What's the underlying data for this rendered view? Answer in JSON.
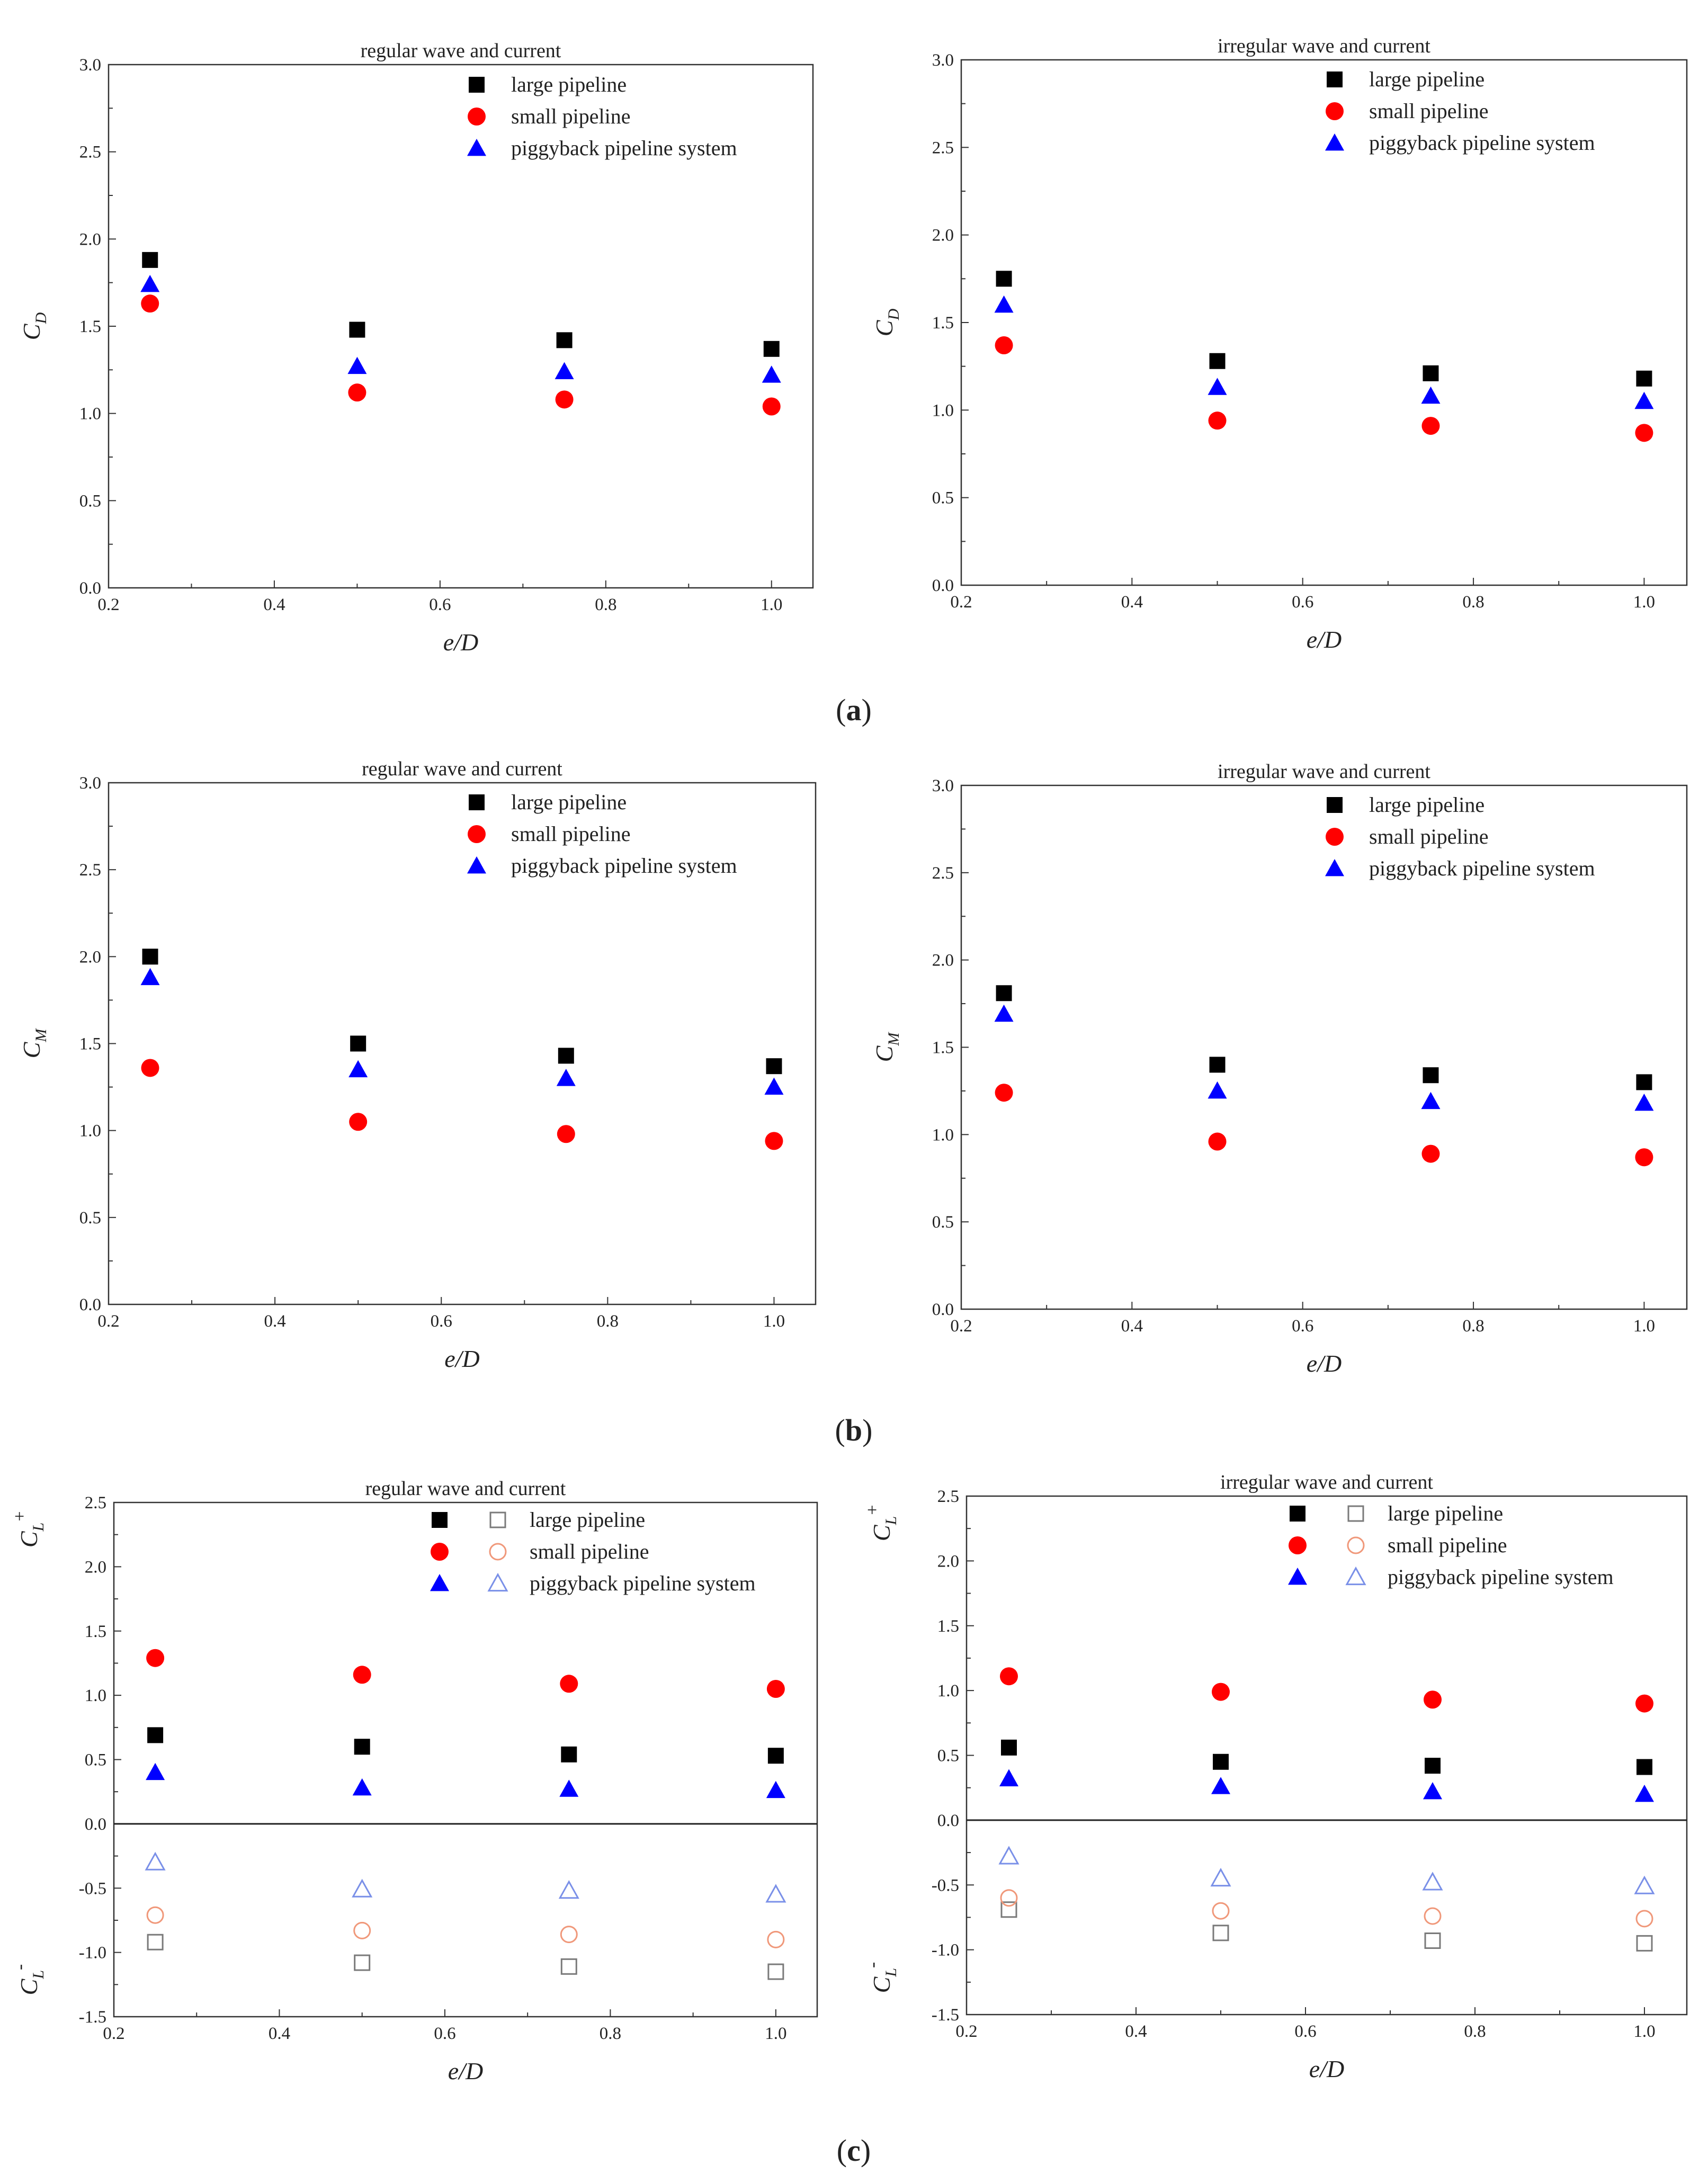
{
  "panel_labels": [
    "a",
    "b",
    "c"
  ],
  "chart_data": [
    {
      "type": "scatter",
      "panel": "a",
      "title": "regular wave and current",
      "xlabel": "e/D",
      "ylabel": "C",
      "ylabel_sub": "D",
      "xlim": [
        0.2,
        1.05
      ],
      "ylim": [
        0.0,
        3.0
      ],
      "xticks": [
        "0.2",
        "0.4",
        "0.6",
        "0.8",
        "1.0"
      ],
      "yticks": [
        "0.0",
        "0.5",
        "1.0",
        "1.5",
        "2.0",
        "2.5",
        "3.0"
      ],
      "x": [
        0.25,
        0.5,
        0.75,
        1.0
      ],
      "series": [
        {
          "name": "large pipeline",
          "marker": "square",
          "color": "#000000",
          "values": [
            1.88,
            1.48,
            1.42,
            1.37
          ]
        },
        {
          "name": "small pipeline",
          "marker": "circle",
          "color": "#ff0000",
          "values": [
            1.63,
            1.12,
            1.08,
            1.04
          ]
        },
        {
          "name": "piggyback pipeline system",
          "marker": "triangle",
          "color": "#0000ff",
          "values": [
            1.74,
            1.27,
            1.24,
            1.22
          ]
        }
      ]
    },
    {
      "type": "scatter",
      "panel": "a",
      "title": "irregular wave and current",
      "xlabel": "e/D",
      "ylabel": "C",
      "ylabel_sub": "D",
      "xlim": [
        0.2,
        1.05
      ],
      "ylim": [
        0.0,
        3.0
      ],
      "xticks": [
        "0.2",
        "0.4",
        "0.6",
        "0.8",
        "1.0"
      ],
      "yticks": [
        "0.0",
        "0.5",
        "1.0",
        "1.5",
        "2.0",
        "2.5",
        "3.0"
      ],
      "x": [
        0.25,
        0.5,
        0.75,
        1.0
      ],
      "series": [
        {
          "name": "large pipeline",
          "marker": "square",
          "color": "#000000",
          "values": [
            1.75,
            1.28,
            1.21,
            1.18
          ]
        },
        {
          "name": "small pipeline",
          "marker": "circle",
          "color": "#ff0000",
          "values": [
            1.37,
            0.94,
            0.91,
            0.87
          ]
        },
        {
          "name": "piggyback pipeline system",
          "marker": "triangle",
          "color": "#0000ff",
          "values": [
            1.6,
            1.13,
            1.08,
            1.05
          ]
        }
      ]
    },
    {
      "type": "scatter",
      "panel": "b",
      "title": "regular wave and current",
      "xlabel": "e/D",
      "ylabel": "C",
      "ylabel_sub": "M",
      "xlim": [
        0.2,
        1.05
      ],
      "ylim": [
        0.0,
        3.0
      ],
      "xticks": [
        "0.2",
        "0.4",
        "0.6",
        "0.8",
        "1.0"
      ],
      "yticks": [
        "0.0",
        "0.5",
        "1.0",
        "1.5",
        "2.0",
        "2.5",
        "3.0"
      ],
      "x": [
        0.25,
        0.5,
        0.75,
        1.0
      ],
      "series": [
        {
          "name": "large pipeline",
          "marker": "square",
          "color": "#000000",
          "values": [
            2.0,
            1.5,
            1.43,
            1.37
          ]
        },
        {
          "name": "small pipeline",
          "marker": "circle",
          "color": "#ff0000",
          "values": [
            1.36,
            1.05,
            0.98,
            0.94
          ]
        },
        {
          "name": "piggyback pipeline system",
          "marker": "triangle",
          "color": "#0000ff",
          "values": [
            1.88,
            1.35,
            1.3,
            1.25
          ]
        }
      ]
    },
    {
      "type": "scatter",
      "panel": "b",
      "title": "irregular wave and current",
      "xlabel": "e/D",
      "ylabel": "C",
      "ylabel_sub": "M",
      "xlim": [
        0.2,
        1.05
      ],
      "ylim": [
        0.0,
        3.0
      ],
      "xticks": [
        "0.2",
        "0.4",
        "0.6",
        "0.8",
        "1.0"
      ],
      "yticks": [
        "0.0",
        "0.5",
        "1.0",
        "1.5",
        "2.0",
        "2.5",
        "3.0"
      ],
      "x": [
        0.25,
        0.5,
        0.75,
        1.0
      ],
      "series": [
        {
          "name": "large pipeline",
          "marker": "square",
          "color": "#000000",
          "values": [
            1.81,
            1.4,
            1.34,
            1.3
          ]
        },
        {
          "name": "small pipeline",
          "marker": "circle",
          "color": "#ff0000",
          "values": [
            1.24,
            0.96,
            0.89,
            0.87
          ]
        },
        {
          "name": "piggyback pipeline system",
          "marker": "triangle",
          "color": "#0000ff",
          "values": [
            1.69,
            1.25,
            1.19,
            1.18
          ]
        }
      ]
    },
    {
      "type": "scatter",
      "panel": "c",
      "title": "regular wave and current",
      "xlabel": "e/D",
      "ylabel_top": "C",
      "ylabel_top_sub": "L",
      "ylabel_top_sup": "+",
      "ylabel_bottom": "C",
      "ylabel_bottom_sub": "L",
      "ylabel_bottom_sup": "-",
      "zero_line": true,
      "xlim": [
        0.2,
        1.05
      ],
      "ylim": [
        -1.5,
        2.5
      ],
      "xticks": [
        "0.2",
        "0.4",
        "0.6",
        "0.8",
        "1.0"
      ],
      "yticks": [
        "-1.5",
        "-1.0",
        "-0.5",
        "0.0",
        "0.5",
        "1.0",
        "1.5",
        "2.0",
        "2.5"
      ],
      "x": [
        0.25,
        0.5,
        0.75,
        1.0
      ],
      "series": [
        {
          "name": "large pipeline",
          "marker": "square",
          "color": "#000000",
          "values": [
            0.69,
            0.6,
            0.54,
            0.53
          ]
        },
        {
          "name": "small pipeline",
          "marker": "circle",
          "color": "#ff0000",
          "values": [
            1.29,
            1.16,
            1.09,
            1.05
          ]
        },
        {
          "name": "piggyback pipeline system",
          "marker": "triangle",
          "color": "#0000ff",
          "values": [
            0.4,
            0.28,
            0.27,
            0.26
          ]
        },
        {
          "name": "large pipeline",
          "marker": "square-open",
          "color": "#7a7a7a",
          "values": [
            -0.92,
            -1.08,
            -1.11,
            -1.15
          ]
        },
        {
          "name": "small pipeline",
          "marker": "circle-open",
          "color": "#f0987a",
          "values": [
            -0.71,
            -0.83,
            -0.86,
            -0.9
          ]
        },
        {
          "name": "piggyback pipeline system",
          "marker": "triangle-open",
          "color": "#7a90e8",
          "values": [
            -0.3,
            -0.51,
            -0.52,
            -0.55
          ]
        }
      ]
    },
    {
      "type": "scatter",
      "panel": "c",
      "title": "irregular wave and current",
      "xlabel": "e/D",
      "ylabel_top": "C",
      "ylabel_top_sub": "L",
      "ylabel_top_sup": "+",
      "ylabel_bottom": "C",
      "ylabel_bottom_sub": "L",
      "ylabel_bottom_sup": "-",
      "zero_line": true,
      "xlim": [
        0.2,
        1.05
      ],
      "ylim": [
        -1.5,
        2.5
      ],
      "xticks": [
        "0.2",
        "0.4",
        "0.6",
        "0.8",
        "1.0"
      ],
      "yticks": [
        "-1.5",
        "-1.0",
        "-0.5",
        "0.0",
        "0.5",
        "1.0",
        "1.5",
        "2.0",
        "2.5"
      ],
      "x": [
        0.25,
        0.5,
        0.75,
        1.0
      ],
      "series": [
        {
          "name": "large pipeline",
          "marker": "square",
          "color": "#000000",
          "values": [
            0.56,
            0.45,
            0.42,
            0.41
          ]
        },
        {
          "name": "small pipeline",
          "marker": "circle",
          "color": "#ff0000",
          "values": [
            1.11,
            0.99,
            0.93,
            0.9
          ]
        },
        {
          "name": "piggyback pipeline system",
          "marker": "triangle",
          "color": "#0000ff",
          "values": [
            0.32,
            0.26,
            0.22,
            0.2
          ]
        },
        {
          "name": "large pipeline",
          "marker": "square-open",
          "color": "#7a7a7a",
          "values": [
            -0.69,
            -0.87,
            -0.93,
            -0.95
          ]
        },
        {
          "name": "small pipeline",
          "marker": "circle-open",
          "color": "#f0987a",
          "values": [
            -0.6,
            -0.7,
            -0.74,
            -0.76
          ]
        },
        {
          "name": "piggyback pipeline system",
          "marker": "triangle-open",
          "color": "#7a90e8",
          "values": [
            -0.28,
            -0.45,
            -0.48,
            -0.51
          ]
        }
      ]
    }
  ]
}
